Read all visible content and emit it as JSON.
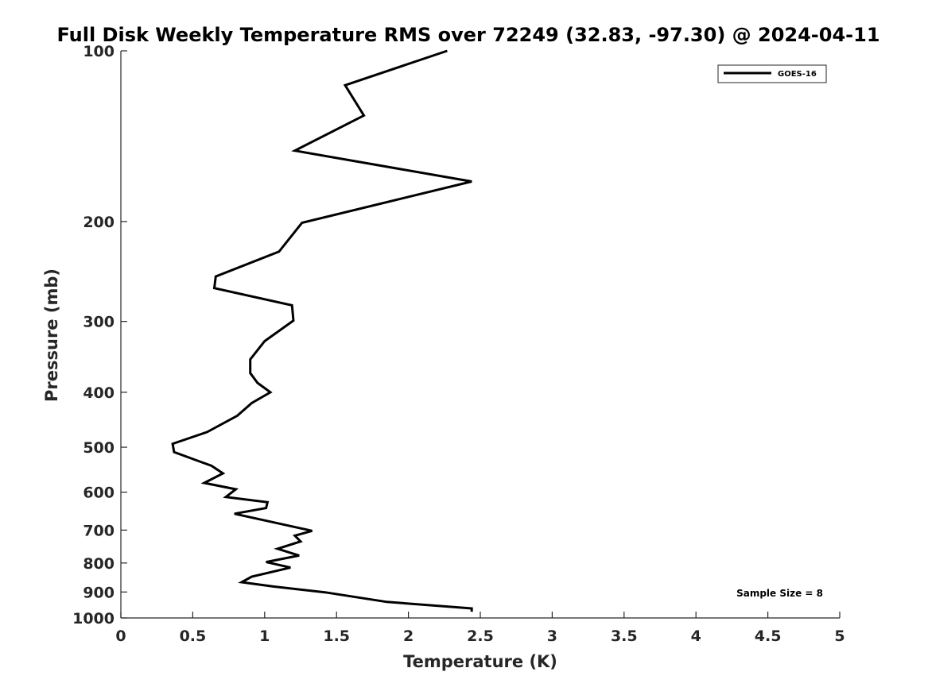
{
  "chart_data": {
    "type": "line",
    "title": "Full Disk Weekly Temperature RMS over 72249 (32.83, -97.30) @ 2024-04-11",
    "xlabel": "Temperature (K)",
    "ylabel": "Pressure (mb)",
    "xlim": [
      0,
      5
    ],
    "ylim": [
      1000,
      100
    ],
    "y_scale": "log",
    "x_ticks": [
      "0",
      "0.5",
      "1",
      "1.5",
      "2",
      "2.5",
      "3",
      "3.5",
      "4",
      "4.5",
      "5"
    ],
    "y_ticks": [
      "100",
      "200",
      "300",
      "400",
      "500",
      "600",
      "700",
      "800",
      "900",
      "1000"
    ],
    "grid": false,
    "legend": {
      "position": "top-right",
      "entries": [
        "GOES-16"
      ]
    },
    "annotation": "Sample Size = 8",
    "series": [
      {
        "name": "GOES-16",
        "color": "#000000",
        "x": [
          2.27,
          1.56,
          1.69,
          1.21,
          2.44,
          1.26,
          1.1,
          0.66,
          0.65,
          1.19,
          1.2,
          1.0,
          0.9,
          0.9,
          0.95,
          1.04,
          0.91,
          0.81,
          0.6,
          0.36,
          0.37,
          0.63,
          0.71,
          0.58,
          0.8,
          0.73,
          1.02,
          1.01,
          0.79,
          1.33,
          1.21,
          1.25,
          1.09,
          1.24,
          1.01,
          1.18,
          0.91,
          0.84,
          1.06,
          1.42,
          1.85,
          2.44,
          2.44
        ],
        "y": [
          100,
          115,
          130,
          150,
          170,
          201,
          226,
          250,
          262,
          281,
          299,
          325,
          350,
          370,
          385,
          400,
          418,
          440,
          470,
          493,
          510,
          539,
          556,
          578,
          593,
          612,
          625,
          640,
          655,
          702,
          716,
          733,
          755,
          776,
          797,
          815,
          846,
          865,
          880,
          901,
          937,
          962,
          975
        ]
      }
    ]
  }
}
